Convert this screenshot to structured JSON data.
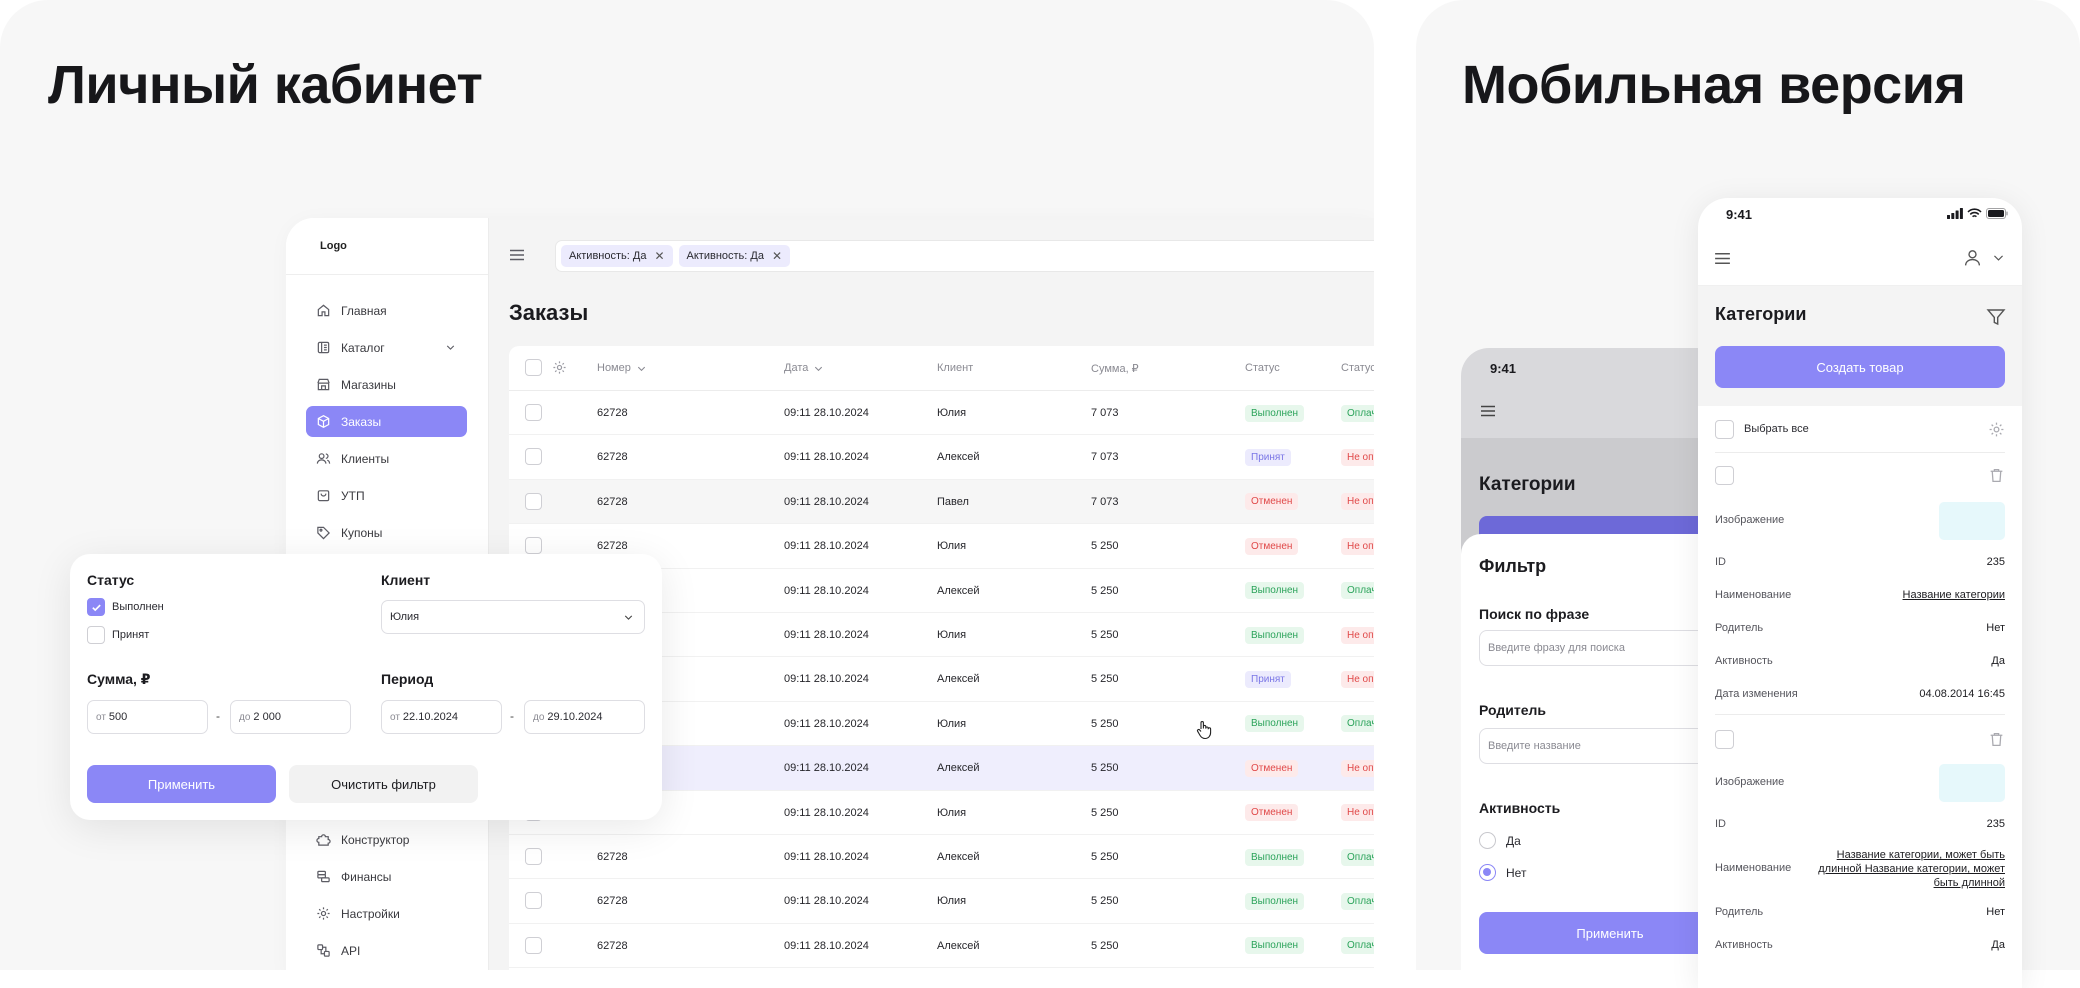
{
  "left_title": "Личный кабинет",
  "right_title": "Мобильная версия",
  "colors": {
    "accent": "#8b87f6",
    "success": "#2ba35a",
    "danger": "#e04848"
  },
  "sidebar": {
    "logo": "Logo",
    "items": [
      {
        "label": "Главная",
        "icon": "home-icon"
      },
      {
        "label": "Каталог",
        "icon": "catalog-icon"
      },
      {
        "label": "Магазины",
        "icon": "store-icon"
      },
      {
        "label": "Заказы",
        "icon": "box-icon"
      },
      {
        "label": "Клиенты",
        "icon": "users-icon"
      },
      {
        "label": "УТП",
        "icon": "bag-icon"
      },
      {
        "label": "Купоны",
        "icon": "tag-icon"
      },
      {
        "label": "Конструктор",
        "icon": "puzzle-icon"
      },
      {
        "label": "Финансы",
        "icon": "coins-icon"
      },
      {
        "label": "Настройки",
        "icon": "gear-icon"
      },
      {
        "label": "API",
        "icon": "api-icon"
      }
    ]
  },
  "chips": [
    "Активность: Да",
    "Активность: Да"
  ],
  "orders": {
    "title": "Заказы",
    "columns": [
      "Номер",
      "Дата",
      "Клиент",
      "Сумма, ₽",
      "Статус",
      "Статус"
    ],
    "rows": [
      {
        "number": "62728",
        "date": "09:11 28.10.2024",
        "client": "Юлия",
        "sum": "7 073",
        "status": "Выполнен",
        "status_kind": "done",
        "pay": "Оплач",
        "pay_kind": "paid"
      },
      {
        "number": "62728",
        "date": "09:11 28.10.2024",
        "client": "Алексей",
        "sum": "7 073",
        "status": "Принят",
        "status_kind": "accepted",
        "pay": "Не оп",
        "pay_kind": "unpaid"
      },
      {
        "number": "62728",
        "date": "09:11 28.10.2024",
        "client": "Павел",
        "sum": "7 073",
        "status": "Отменен",
        "status_kind": "cancel",
        "pay": "Не оп",
        "pay_kind": "unpaid"
      },
      {
        "number": "62728",
        "date": "09:11 28.10.2024",
        "client": "Юлия",
        "sum": "5 250",
        "status": "Отменен",
        "status_kind": "cancel",
        "pay": "Не оп",
        "pay_kind": "unpaid"
      },
      {
        "number": "",
        "date": "09:11 28.10.2024",
        "client": "Алексей",
        "sum": "5 250",
        "status": "Выполнен",
        "status_kind": "done",
        "pay": "Оплач",
        "pay_kind": "paid"
      },
      {
        "number": "",
        "date": "09:11 28.10.2024",
        "client": "Юлия",
        "sum": "5 250",
        "status": "Выполнен",
        "status_kind": "done",
        "pay": "Не оп",
        "pay_kind": "unpaid"
      },
      {
        "number": "",
        "date": "09:11 28.10.2024",
        "client": "Алексей",
        "sum": "5 250",
        "status": "Принят",
        "status_kind": "accepted",
        "pay": "Не оп",
        "pay_kind": "unpaid"
      },
      {
        "number": "",
        "date": "09:11 28.10.2024",
        "client": "Юлия",
        "sum": "5 250",
        "status": "Выполнен",
        "status_kind": "done",
        "pay": "Оплач",
        "pay_kind": "paid"
      },
      {
        "number": "",
        "date": "09:11 28.10.2024",
        "client": "Алексей",
        "sum": "5 250",
        "status": "Отменен",
        "status_kind": "cancel",
        "pay": "Не оп",
        "pay_kind": "unpaid"
      },
      {
        "number": "",
        "date": "09:11 28.10.2024",
        "client": "Юлия",
        "sum": "5 250",
        "status": "Отменен",
        "status_kind": "cancel",
        "pay": "Не оп",
        "pay_kind": "unpaid"
      },
      {
        "number": "62728",
        "date": "09:11 28.10.2024",
        "client": "Алексей",
        "sum": "5 250",
        "status": "Выполнен",
        "status_kind": "done",
        "pay": "Оплач",
        "pay_kind": "paid"
      },
      {
        "number": "62728",
        "date": "09:11 28.10.2024",
        "client": "Юлия",
        "sum": "5 250",
        "status": "Выполнен",
        "status_kind": "done",
        "pay": "Оплач",
        "pay_kind": "paid"
      },
      {
        "number": "62728",
        "date": "09:11 28.10.2024",
        "client": "Алексей",
        "sum": "5 250",
        "status": "Выполнен",
        "status_kind": "done",
        "pay": "Оплач",
        "pay_kind": "paid"
      }
    ]
  },
  "filter": {
    "status_label": "Статус",
    "status_options": [
      {
        "label": "Выполнен",
        "checked": true
      },
      {
        "label": "Принят",
        "checked": false
      }
    ],
    "client_label": "Клиент",
    "client_value": "Юлия",
    "sum_label": "Сумма, ₽",
    "sum_from_prefix": "от",
    "sum_from": "500",
    "sum_to_prefix": "до",
    "sum_to": "2 000",
    "period_label": "Период",
    "period_from_prefix": "от",
    "period_from": "22.10.2024",
    "period_to_prefix": "до",
    "period_to": "29.10.2024",
    "dash": "-",
    "apply": "Применить",
    "clear": "Очистить фильтр"
  },
  "mobile_back": {
    "time": "9:41",
    "title": "Категории",
    "filter_title": "Фильтр",
    "phrase_label": "Поиск по фразе",
    "phrase_placeholder": "Введите фразу для поиска",
    "parent_label": "Родитель",
    "parent_placeholder": "Введите название",
    "activity_label": "Активность",
    "activity_options": [
      {
        "label": "Да",
        "checked": false
      },
      {
        "label": "Нет",
        "checked": true
      }
    ],
    "apply": "Применить"
  },
  "mobile_front": {
    "time": "9:41",
    "title": "Категории",
    "create": "Создать товар",
    "select_all": "Выбрать все",
    "items": [
      {
        "image_label": "Изображение",
        "id_label": "ID",
        "id": "235",
        "name_label": "Наименование",
        "name": "Название категории",
        "parent_label": "Родитель",
        "parent": "Нет",
        "activity_label": "Активность",
        "activity": "Да",
        "changed_label": "Дата изменения",
        "changed": "04.08.2014 16:45"
      },
      {
        "image_label": "Изображение",
        "id_label": "ID",
        "id": "235",
        "name_label": "Наименование",
        "name": "Название категории, может быть длинной Название категории, может быть длинной",
        "parent_label": "Родитель",
        "parent": "Нет",
        "activity_label": "Активность",
        "activity": "Да"
      }
    ]
  }
}
